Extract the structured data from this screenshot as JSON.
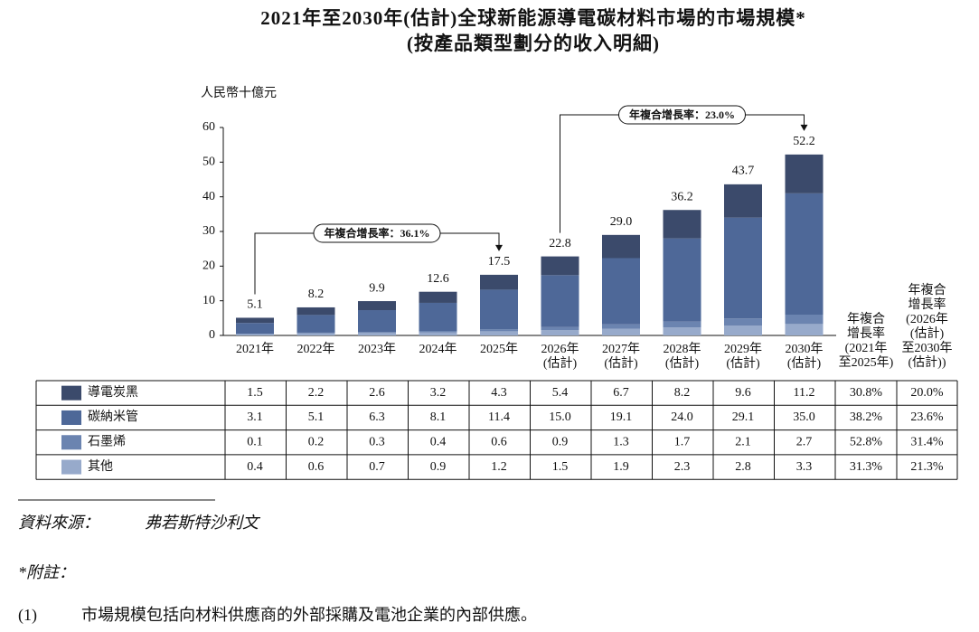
{
  "title": "2021年至2030年(估計)全球新能源導電碳材料市場的市場規模*",
  "subtitle": "(按產品類型劃分的收入明細)",
  "chart_data": {
    "type": "stacked_bar",
    "y_label": "人民幣十億元",
    "categories": [
      "2021年",
      "2022年",
      "2023年",
      "2024年",
      "2025年",
      "2026年\n(估計)",
      "2027年\n(估計)",
      "2028年\n(估計)",
      "2029年\n(估計)",
      "2030年\n(估計)"
    ],
    "series": [
      {
        "name": "導電炭黑",
        "color": "#3b4a6b",
        "values": [
          1.5,
          2.2,
          2.6,
          3.2,
          4.3,
          5.4,
          6.7,
          8.2,
          9.6,
          11.2
        ]
      },
      {
        "name": "碳納米管",
        "color": "#4e6898",
        "values": [
          3.1,
          5.1,
          6.3,
          8.1,
          11.4,
          15.0,
          19.1,
          24.0,
          29.1,
          35.0
        ],
        "value_labels": [
          "3.1",
          "5.1",
          "6.3",
          "8.1",
          "11.4",
          "15.0",
          "19.1",
          "24.0",
          "29.1",
          "35.0"
        ]
      },
      {
        "name": "石墨烯",
        "color": "#6b84b0",
        "values": [
          0.1,
          0.2,
          0.3,
          0.4,
          0.6,
          0.9,
          1.3,
          1.7,
          2.1,
          2.7
        ]
      },
      {
        "name": "其他",
        "color": "#97aacb",
        "values": [
          0.4,
          0.6,
          0.7,
          0.9,
          1.2,
          1.5,
          1.9,
          2.3,
          2.8,
          3.3
        ]
      }
    ],
    "totals": [
      5.1,
      8.2,
      9.9,
      12.6,
      17.5,
      22.8,
      29.0,
      36.2,
      43.7,
      52.2
    ],
    "total_labels": [
      "5.1",
      "8.2",
      "9.9",
      "12.6",
      "17.5",
      "22.8",
      "29.0",
      "36.2",
      "43.7",
      "52.2"
    ],
    "ylim": [
      0,
      60
    ],
    "yticks": [
      0,
      10,
      20,
      30,
      40,
      50,
      60
    ],
    "annotations": [
      "年複合增長率：36.1%",
      "年複合增長率：23.0%"
    ],
    "cagr_columns": [
      {
        "header": "年複合\n增長率\n(2021年\n至2025年)",
        "values": [
          "30.8%",
          "38.2%",
          "52.8%",
          "31.3%"
        ]
      },
      {
        "header": "年複合\n增長率\n(2026年\n(估計)\n至2030年\n(估計))",
        "values": [
          "20.0%",
          "23.6%",
          "31.4%",
          "21.3%"
        ]
      }
    ]
  },
  "notes": {
    "source_label": "資料來源：",
    "source": "弗若斯特沙利文",
    "note_label": "*附註：",
    "items": [
      {
        "number": "(1)",
        "text": "市場規模包括向材料供應商的外部採購及電池企業的內部供應。"
      }
    ]
  }
}
